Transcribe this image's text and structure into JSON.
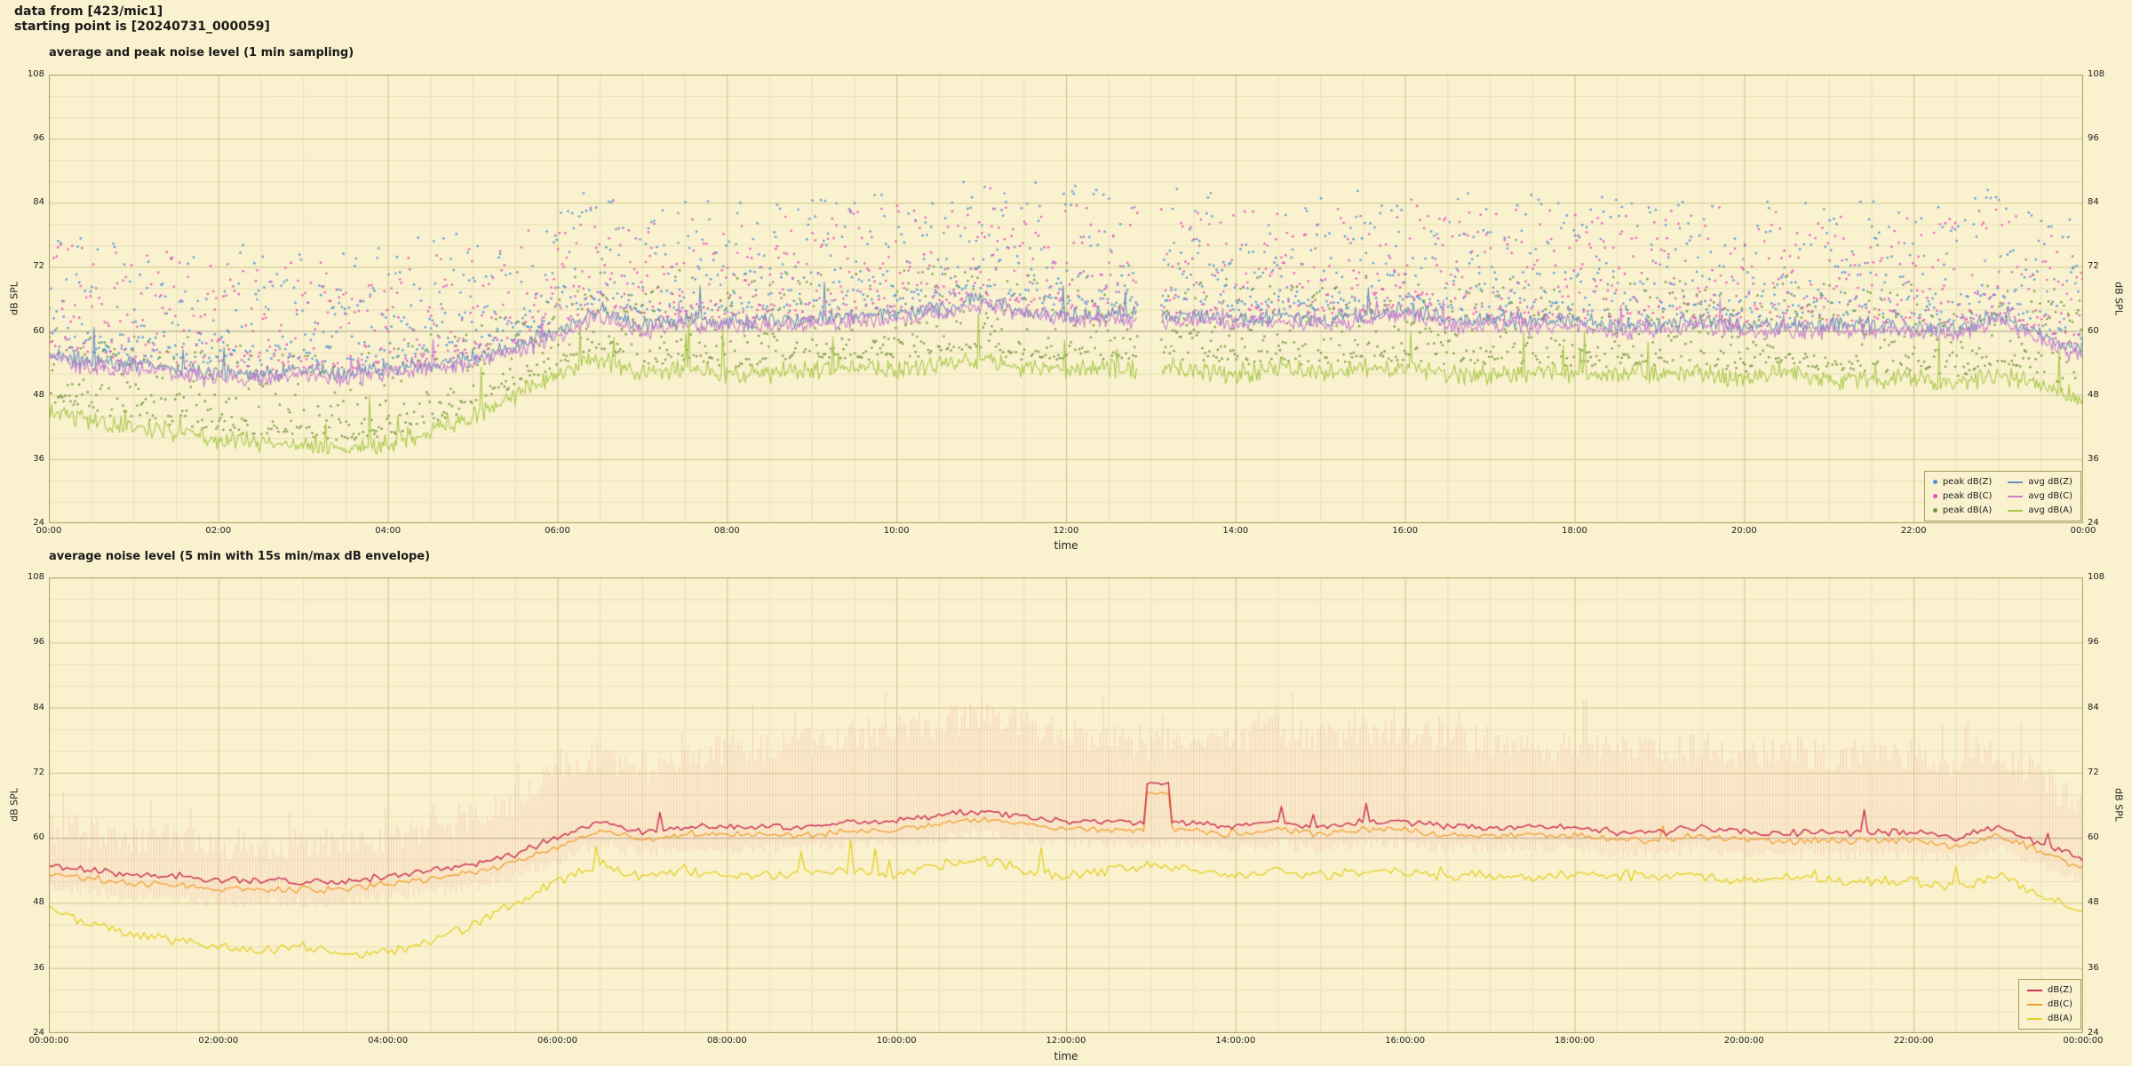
{
  "header": {
    "line1": "data from [423/mic1]",
    "line2": "starting point is [20240731_000059]"
  },
  "style": {
    "background": "#faf2cf",
    "grid_major": "#cfc189",
    "grid_minor": "#e8dfb6",
    "border": "#a89a5e",
    "ref_line_60": "#9a9a9a",
    "text": "#1a1a1a"
  },
  "chart_data": [
    {
      "type": "line",
      "subtype": "line+scatter",
      "title": "average and peak noise level (1 min sampling)",
      "xlabel": "time",
      "ylabel": "dB SPL",
      "ylabel_left": "dB SPL",
      "ylabel_right": "dB SPL",
      "ylim": [
        24,
        108
      ],
      "yticks": [
        24,
        36,
        48,
        60,
        72,
        84,
        96,
        108
      ],
      "xlim_hours": [
        0,
        24
      ],
      "xtick_hours": [
        0,
        2,
        4,
        6,
        8,
        10,
        12,
        14,
        16,
        18,
        20,
        22,
        24
      ],
      "xtick_labels": [
        "00:00",
        "02:00",
        "04:00",
        "06:00",
        "08:00",
        "10:00",
        "12:00",
        "14:00",
        "16:00",
        "18:00",
        "20:00",
        "22:00",
        "00:00"
      ],
      "grid": true,
      "legend_position": "lower right",
      "gap_hours": [
        [
          12.85,
          13.12
        ]
      ],
      "x_hours": [
        0,
        0.5,
        1,
        1.5,
        2,
        2.5,
        3,
        3.5,
        4,
        4.5,
        5,
        5.5,
        6,
        6.5,
        7,
        7.5,
        8,
        8.5,
        9,
        9.5,
        10,
        10.5,
        11,
        11.5,
        12,
        12.5,
        13,
        13.5,
        14,
        14.5,
        15,
        15.5,
        16,
        16.5,
        17,
        17.5,
        18,
        18.5,
        19,
        19.5,
        20,
        20.5,
        21,
        21.5,
        22,
        22.5,
        23,
        23.5,
        24
      ],
      "series": [
        {
          "name": "avg dB(Z)",
          "color": "#6a8fc0",
          "width": 1.1,
          "jitter": 1.9,
          "spike_p": 0.012,
          "spike_amp": 7,
          "step_min": 1,
          "values": [
            56,
            54,
            54,
            53,
            52,
            52,
            53,
            52,
            53,
            54,
            55,
            57,
            60,
            64,
            61,
            62,
            62,
            62,
            62,
            63,
            63,
            64,
            66,
            64,
            63,
            63,
            63,
            63,
            62,
            63,
            62,
            63,
            64,
            62,
            62,
            62,
            62,
            61,
            61,
            62,
            61,
            61,
            61,
            61,
            61,
            60,
            63,
            59,
            56
          ]
        },
        {
          "name": "avg dB(C)",
          "color": "#c97fd0",
          "width": 1.1,
          "jitter": 1.9,
          "spike_p": 0.012,
          "spike_amp": 6,
          "step_min": 1,
          "values": [
            55,
            53,
            53,
            52,
            51,
            51,
            52,
            51,
            52,
            53,
            54,
            56,
            59,
            63,
            60,
            61,
            61,
            61,
            61,
            62,
            62,
            63,
            65,
            63,
            62,
            62,
            62,
            62,
            61,
            62,
            61,
            62,
            63,
            61,
            61,
            61,
            61,
            60,
            60,
            61,
            60,
            60,
            60,
            60,
            60,
            59,
            62,
            58,
            55
          ]
        },
        {
          "name": "avg dB(A)",
          "color": "#a8c84a",
          "width": 1.1,
          "jitter": 2.2,
          "spike_p": 0.02,
          "spike_amp": 9,
          "step_min": 1,
          "values": [
            45,
            43,
            42,
            41,
            40,
            39,
            39,
            38,
            39,
            41,
            44,
            48,
            52,
            55,
            52,
            53,
            52,
            52,
            53,
            53,
            53,
            54,
            55,
            53,
            53,
            53,
            53,
            53,
            52,
            53,
            52,
            53,
            53,
            52,
            52,
            52,
            52,
            52,
            52,
            52,
            51,
            52,
            51,
            51,
            51,
            50,
            52,
            50,
            47
          ]
        }
      ],
      "scatter": [
        {
          "name": "peak dB(Z)",
          "color": "#4f94d4",
          "base": "avg dB(Z)",
          "offset_min": 2,
          "offset_max": 24,
          "points_per_hour": 60
        },
        {
          "name": "peak dB(C)",
          "color": "#e255bb",
          "base": "avg dB(C)",
          "offset_min": 1.5,
          "offset_max": 22,
          "points_per_hour": 60
        },
        {
          "name": "peak dB(A)",
          "color": "#74973f",
          "base": "avg dB(A)",
          "offset_min": 2,
          "offset_max": 18,
          "points_per_hour": 60
        }
      ],
      "legend": [
        {
          "label": "peak dB(Z)",
          "marker": "dot",
          "color": "#4f94d4"
        },
        {
          "label": "peak dB(C)",
          "marker": "dot",
          "color": "#e255bb"
        },
        {
          "label": "peak dB(A)",
          "marker": "dot",
          "color": "#74973f"
        },
        {
          "label": "avg dB(Z)",
          "marker": "line",
          "color": "#6a8fc0"
        },
        {
          "label": "avg dB(C)",
          "marker": "line",
          "color": "#c97fd0"
        },
        {
          "label": "avg dB(A)",
          "marker": "line",
          "color": "#a8c84a"
        }
      ]
    },
    {
      "type": "line",
      "subtype": "line+envelope",
      "title": "average noise level (5 min with 15s min/max dB envelope)",
      "xlabel": "time",
      "ylabel": "dB SPL",
      "ylabel_left": "dB SPL",
      "ylabel_right": "dB SPL",
      "ylim": [
        24,
        108
      ],
      "yticks": [
        24,
        36,
        48,
        60,
        72,
        84,
        96,
        108
      ],
      "xlim_hours": [
        0,
        24
      ],
      "xtick_hours": [
        0,
        2,
        4,
        6,
        8,
        10,
        12,
        14,
        16,
        18,
        20,
        22,
        24
      ],
      "xtick_labels": [
        "00:00:00",
        "02:00:00",
        "04:00:00",
        "06:00:00",
        "08:00:00",
        "10:00:00",
        "12:00:00",
        "14:00:00",
        "16:00:00",
        "18:00:00",
        "20:00:00",
        "22:00:00",
        "00:00:00"
      ],
      "grid": true,
      "legend_position": "lower right",
      "draw_reverse": true,
      "x_hours": [
        0,
        0.5,
        1,
        1.5,
        2,
        2.5,
        3,
        3.5,
        4,
        4.5,
        5,
        5.5,
        6,
        6.5,
        7,
        7.5,
        8,
        8.5,
        9,
        9.5,
        10,
        10.5,
        11,
        11.5,
        12,
        12.5,
        13,
        13.5,
        14,
        14.5,
        15,
        15.5,
        16,
        16.5,
        17,
        17.5,
        18,
        18.5,
        19,
        19.5,
        20,
        20.5,
        21,
        21.5,
        22,
        22.5,
        23,
        23.5,
        24
      ],
      "envelope": {
        "name": "dB(Z) 15s min/max envelope",
        "color": "#f2a9a0",
        "alpha": 0.38,
        "max": [
          61,
          60,
          59,
          59,
          58,
          58,
          58,
          58,
          59,
          61,
          63,
          66,
          71,
          74,
          72,
          74,
          75,
          76,
          77,
          78,
          79,
          80,
          82,
          80,
          78,
          78,
          76,
          78,
          77,
          79,
          77,
          78,
          79,
          77,
          77,
          76,
          76,
          75,
          75,
          76,
          75,
          75,
          74,
          74,
          74,
          72,
          75,
          70,
          64
        ],
        "min": [
          51,
          50,
          49,
          49,
          48,
          48,
          48,
          48,
          49,
          50,
          51,
          53,
          56,
          59,
          57,
          58,
          58,
          58,
          58,
          59,
          59,
          60,
          61,
          60,
          59,
          59,
          59,
          59,
          58,
          59,
          58,
          59,
          59,
          58,
          58,
          58,
          58,
          57,
          57,
          58,
          57,
          57,
          57,
          57,
          57,
          56,
          58,
          55,
          52
        ]
      },
      "series": [
        {
          "name": "dB(Z)",
          "color": "#cc3355",
          "width": 1.5,
          "jitter": 0.8,
          "spike_p": 0.006,
          "spike_amp": 4,
          "step_min": 2.5,
          "plateau": {
            "start": 12.92,
            "end": 13.22,
            "value": 70
          },
          "values": [
            55,
            54,
            53,
            53,
            52,
            52,
            52,
            52,
            53,
            54,
            55,
            57,
            60,
            63,
            61,
            62,
            62,
            62,
            62,
            63,
            63,
            64,
            65,
            64,
            63,
            63,
            63,
            63,
            62,
            63,
            62,
            63,
            63,
            62,
            62,
            62,
            62,
            61,
            61,
            62,
            61,
            61,
            61,
            61,
            61,
            60,
            62,
            59,
            56
          ]
        },
        {
          "name": "dB(C)",
          "color": "#f0a030",
          "width": 1.3,
          "jitter": 0.8,
          "spike_p": 0.006,
          "spike_amp": 4,
          "step_min": 2.5,
          "plateau": {
            "start": 12.92,
            "end": 13.22,
            "value": 68.3
          },
          "values": [
            53.5,
            52.5,
            51.5,
            51.5,
            50.5,
            50.5,
            50.5,
            50.5,
            51.5,
            52.5,
            53.5,
            55.5,
            58.5,
            61.5,
            59.5,
            60.5,
            60.5,
            60.5,
            60.5,
            61.5,
            61.5,
            62.5,
            63.5,
            62.5,
            61.5,
            61.5,
            61.5,
            61.5,
            60.5,
            61.5,
            60.5,
            61.5,
            61.5,
            60.5,
            60.5,
            60.5,
            60.5,
            59.5,
            59.5,
            60.5,
            59.5,
            59.5,
            59.5,
            59.5,
            59.5,
            58.5,
            60.5,
            57.5,
            54.5
          ]
        },
        {
          "name": "dB(A)",
          "color": "#e3cf1f",
          "width": 1.3,
          "jitter": 1.2,
          "spike_p": 0.01,
          "spike_amp": 5,
          "step_min": 2.5,
          "values": [
            47,
            44,
            42,
            41,
            40,
            39,
            40,
            38,
            39,
            41,
            44,
            48,
            52,
            55,
            53,
            54,
            53,
            53,
            54,
            54,
            53,
            55,
            56,
            54,
            53,
            54,
            55,
            54,
            53,
            54,
            53,
            54,
            54,
            53,
            53,
            53,
            53,
            53,
            53,
            53,
            52,
            53,
            52,
            52,
            52,
            51,
            53,
            49,
            47
          ]
        }
      ],
      "legend": [
        {
          "label": "dB(Z)",
          "marker": "line",
          "color": "#cc3355"
        },
        {
          "label": "dB(C)",
          "marker": "line",
          "color": "#f0a030"
        },
        {
          "label": "dB(A)",
          "marker": "line",
          "color": "#e3cf1f"
        }
      ]
    }
  ]
}
